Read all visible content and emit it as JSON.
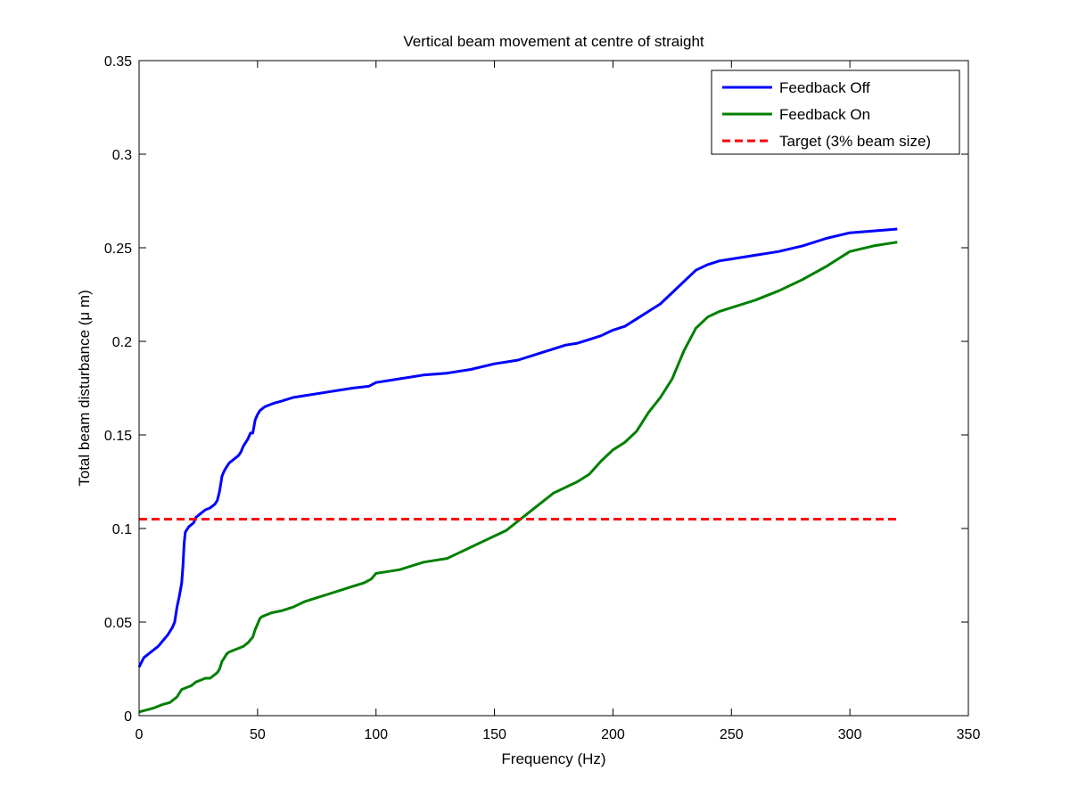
{
  "chart_data": {
    "type": "line",
    "title": "Vertical beam movement at centre of straight",
    "xlabel": "Frequency (Hz)",
    "ylabel": "Total beam disturbance (μ m)",
    "xlim": [
      0,
      350
    ],
    "ylim": [
      0,
      0.35
    ],
    "xticks": [
      "0",
      "50",
      "100",
      "150",
      "200",
      "250",
      "300",
      "350"
    ],
    "yticks": [
      "0",
      "0.05",
      "0.1",
      "0.15",
      "0.2",
      "0.25",
      "0.3",
      "0.35"
    ],
    "grid": false,
    "legend_position": "top-right",
    "series": [
      {
        "name": "Feedback Off",
        "color": "#0000ff",
        "style": "solid",
        "x": [
          0,
          2,
          5,
          8,
          10,
          12,
          14,
          15,
          16,
          17,
          18,
          18.5,
          19,
          19.5,
          20,
          21,
          22,
          23,
          24,
          25,
          26,
          27,
          28,
          30,
          32,
          33,
          34,
          35,
          36,
          37,
          38,
          40,
          42,
          43,
          44,
          45,
          46,
          47,
          48,
          49,
          50,
          51,
          52,
          53,
          55,
          57,
          60,
          65,
          70,
          80,
          90,
          97,
          100,
          105,
          110,
          120,
          130,
          140,
          150,
          155,
          160,
          165,
          170,
          175,
          180,
          185,
          190,
          195,
          200,
          205,
          210,
          215,
          220,
          225,
          230,
          235,
          240,
          245,
          250,
          255,
          260,
          265,
          270,
          280,
          290,
          300,
          310,
          320
        ],
        "y": [
          0.026,
          0.031,
          0.034,
          0.037,
          0.04,
          0.043,
          0.047,
          0.05,
          0.058,
          0.064,
          0.071,
          0.08,
          0.092,
          0.098,
          0.099,
          0.101,
          0.102,
          0.103,
          0.106,
          0.107,
          0.108,
          0.109,
          0.11,
          0.111,
          0.113,
          0.115,
          0.12,
          0.128,
          0.131,
          0.133,
          0.135,
          0.137,
          0.139,
          0.141,
          0.144,
          0.146,
          0.148,
          0.151,
          0.151,
          0.158,
          0.161,
          0.163,
          0.164,
          0.165,
          0.166,
          0.167,
          0.168,
          0.17,
          0.171,
          0.173,
          0.175,
          0.176,
          0.178,
          0.179,
          0.18,
          0.182,
          0.183,
          0.185,
          0.188,
          0.189,
          0.19,
          0.192,
          0.194,
          0.196,
          0.198,
          0.199,
          0.201,
          0.203,
          0.206,
          0.208,
          0.212,
          0.216,
          0.22,
          0.226,
          0.232,
          0.238,
          0.241,
          0.243,
          0.244,
          0.245,
          0.246,
          0.247,
          0.248,
          0.251,
          0.255,
          0.258,
          0.259,
          0.26
        ]
      },
      {
        "name": "Feedback On",
        "color": "#008000",
        "style": "solid",
        "x": [
          0,
          3,
          6,
          10,
          13,
          16,
          18,
          20,
          22,
          24,
          26,
          28,
          30,
          33,
          34,
          35,
          36,
          37,
          38,
          40,
          42,
          44,
          46,
          48,
          49,
          50,
          51,
          52,
          54,
          56,
          60,
          65,
          70,
          75,
          80,
          85,
          90,
          95,
          98,
          100,
          105,
          110,
          115,
          120,
          125,
          130,
          135,
          140,
          145,
          150,
          155,
          160,
          165,
          170,
          175,
          180,
          185,
          190,
          195,
          200,
          205,
          210,
          215,
          220,
          225,
          230,
          235,
          240,
          245,
          250,
          255,
          260,
          270,
          280,
          290,
          300,
          310,
          320
        ],
        "y": [
          0.002,
          0.003,
          0.004,
          0.006,
          0.007,
          0.01,
          0.014,
          0.015,
          0.016,
          0.018,
          0.019,
          0.02,
          0.02,
          0.023,
          0.025,
          0.029,
          0.031,
          0.033,
          0.034,
          0.035,
          0.036,
          0.037,
          0.039,
          0.042,
          0.046,
          0.049,
          0.052,
          0.053,
          0.054,
          0.055,
          0.056,
          0.058,
          0.061,
          0.063,
          0.065,
          0.067,
          0.069,
          0.071,
          0.073,
          0.076,
          0.077,
          0.078,
          0.08,
          0.082,
          0.083,
          0.084,
          0.087,
          0.09,
          0.093,
          0.096,
          0.099,
          0.104,
          0.109,
          0.114,
          0.119,
          0.122,
          0.125,
          0.129,
          0.136,
          0.142,
          0.146,
          0.152,
          0.162,
          0.17,
          0.18,
          0.195,
          0.207,
          0.213,
          0.216,
          0.218,
          0.22,
          0.222,
          0.227,
          0.233,
          0.24,
          0.248,
          0.251,
          0.253
        ]
      },
      {
        "name": "Target (3% beam size)",
        "color": "#ff0000",
        "style": "dashed",
        "x": [
          0,
          320
        ],
        "y": [
          0.105,
          0.105
        ]
      }
    ]
  }
}
